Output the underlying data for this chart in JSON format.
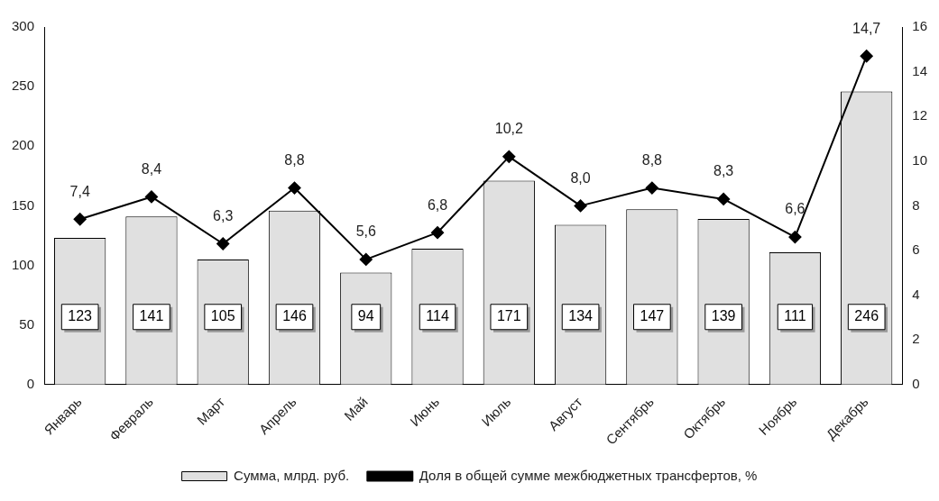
{
  "chart_data": {
    "type": "bar",
    "categories": [
      "Январь",
      "Февраль",
      "Март",
      "Апрель",
      "Май",
      "Июнь",
      "Июль",
      "Август",
      "Сентябрь",
      "Октябрь",
      "Ноябрь",
      "Декабрь"
    ],
    "series": [
      {
        "name": "Сумма, млрд. руб.",
        "color": "#e0e0e0",
        "values": [
          123,
          141,
          105,
          146,
          94,
          114,
          171,
          134,
          147,
          139,
          111,
          246
        ],
        "value_labels": [
          "123",
          "141",
          "105",
          "146",
          "94",
          "114",
          "171",
          "134",
          "147",
          "139",
          "111",
          "246"
        ]
      },
      {
        "name": "Доля в общей сумме межбюджетных трансфертов, %",
        "type": "line",
        "axis": "y2",
        "color": "#000000",
        "marker": "diamond",
        "values": [
          7.4,
          8.4,
          6.3,
          8.8,
          5.6,
          6.8,
          10.2,
          8.0,
          8.8,
          8.3,
          6.6,
          14.7
        ],
        "value_labels": [
          "7,4",
          "8,4",
          "6,3",
          "8,8",
          "5,6",
          "6,8",
          "10,2",
          "8,0",
          "8,8",
          "8,3",
          "6,6",
          "14,7"
        ]
      }
    ],
    "ylim": [
      0,
      300
    ],
    "yticks": [
      0,
      50,
      100,
      150,
      200,
      250,
      300
    ],
    "y2lim": [
      0,
      16
    ],
    "y2ticks": [
      0,
      2,
      4,
      6,
      8,
      10,
      12,
      14,
      16
    ],
    "grid": false,
    "legend": "bottom"
  }
}
